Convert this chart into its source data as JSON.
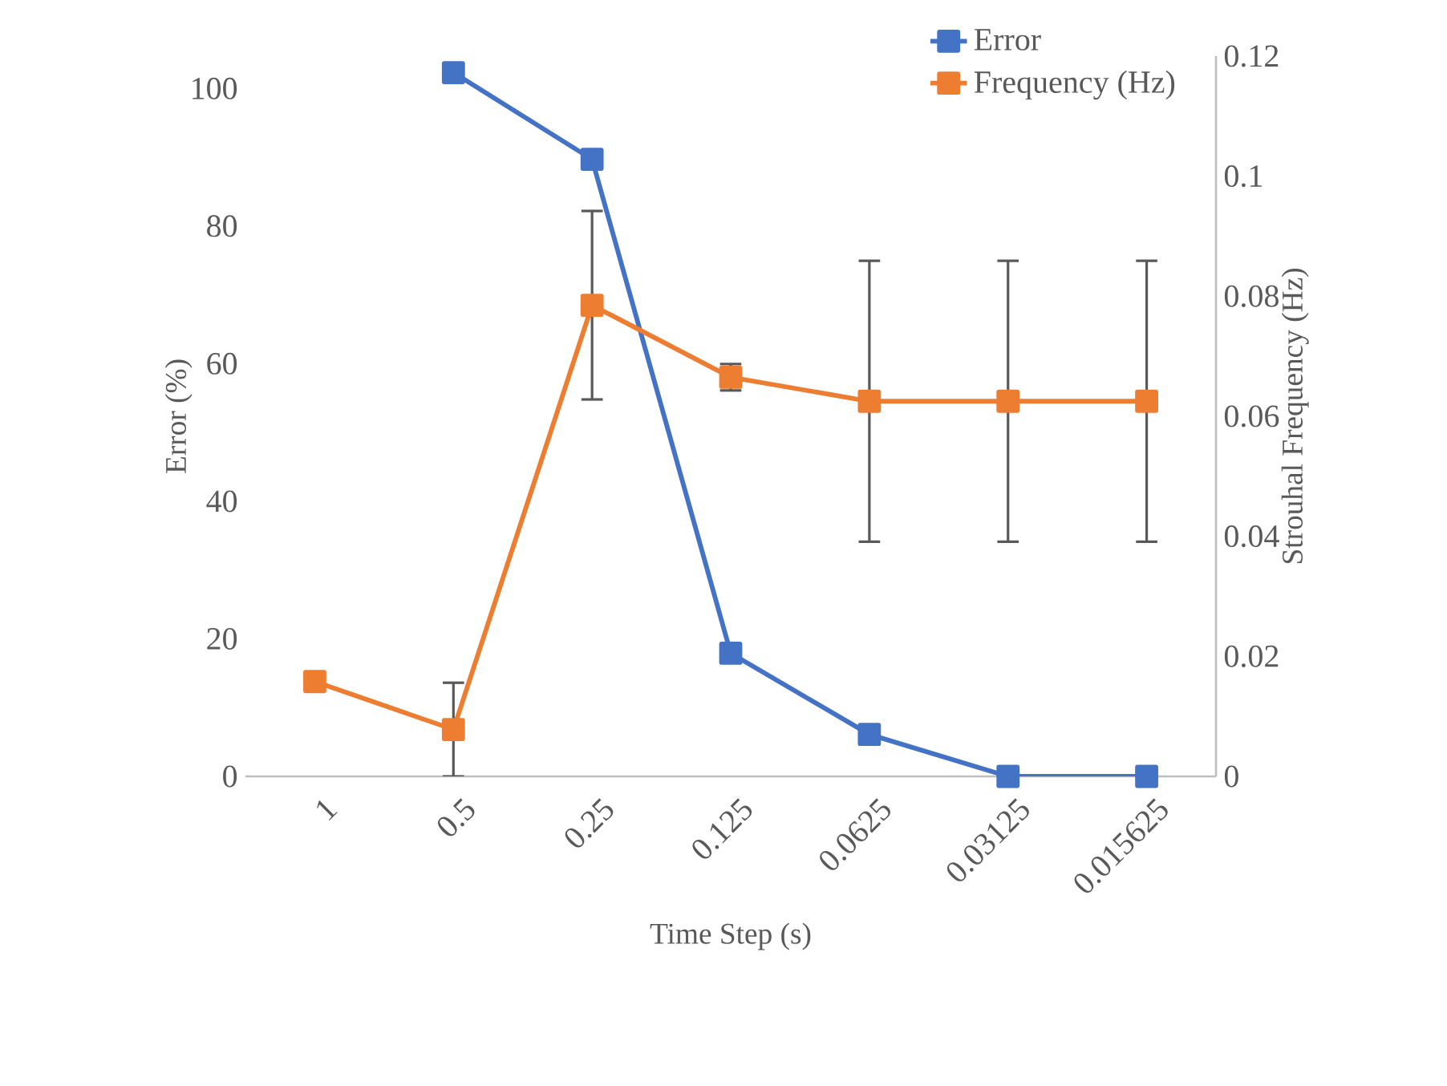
{
  "chart_data": {
    "type": "line",
    "xlabel": "Time Step (s)",
    "ylabel": "Error (%)",
    "y2label": "Strouhal Frequency (Hz)",
    "categories": [
      "1",
      "0.5",
      "0.25",
      "0.125",
      "0.0625",
      "0.03125",
      "0.015625"
    ],
    "series": [
      {
        "name": "Error",
        "color": "#4472c4",
        "values": [
          null,
          102.3,
          89.7,
          17.9,
          6.1,
          0,
          0
        ]
      },
      {
        "name": "Frequency (Hz)",
        "color": "#ed7d31",
        "axis": "y2",
        "values": [
          0.0158,
          0.0078,
          0.0785,
          0.0665,
          0.0625,
          0.0625,
          0.0625
        ],
        "errors": [
          null,
          0.0078,
          0.0157,
          0.0022,
          0.0234,
          0.0234,
          0.0234
        ]
      }
    ],
    "ylim": [
      0,
      104.7
    ],
    "yticks": [
      0,
      20,
      40,
      60,
      80,
      100
    ],
    "y2lim": [
      0,
      0.12
    ],
    "y2ticks": [
      0,
      0.02,
      0.04,
      0.06,
      0.08,
      0.1,
      0.12
    ],
    "marker": "square",
    "line_style": "solid",
    "legend": "top right"
  }
}
